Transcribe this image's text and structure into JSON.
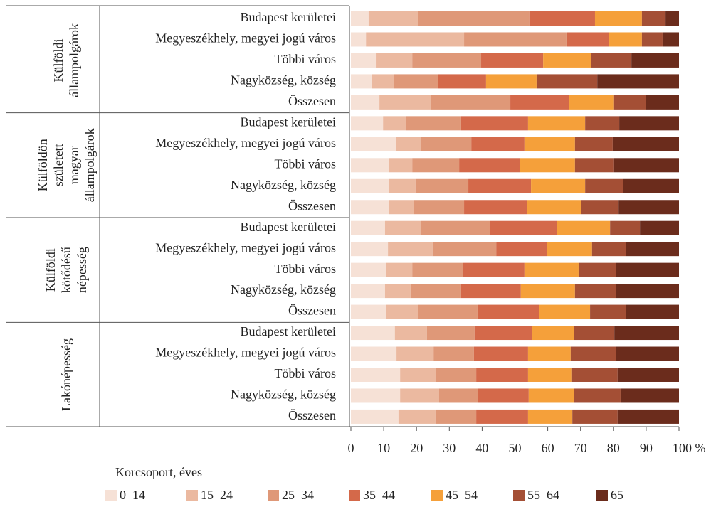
{
  "chart_data": {
    "type": "stacked-barh",
    "groups": [
      {
        "label": [
          "Külföldi",
          "állampolgárok"
        ],
        "categories": [
          "Budapest kerületei",
          "Megyeszékhely, megyei jogú város",
          "Többi város",
          "Nagyközség, község",
          "Összesen"
        ]
      },
      {
        "label": [
          "Külföldön",
          "született",
          "magyar",
          "állampolgárok"
        ],
        "categories": [
          "Budapest kerületei",
          "Megyeszékhely, megyei jogú város",
          "Többi város",
          "Nagyközség, község",
          "Összesen"
        ]
      },
      {
        "label": [
          "Külföldi",
          "kötődésű",
          "népesség"
        ],
        "categories": [
          "Budapest kerületei",
          "Megyeszékhely, megyei jogú város",
          "Többi város",
          "Nagyközség, község",
          "Összesen"
        ]
      },
      {
        "label": [
          "Lakónépesség"
        ],
        "categories": [
          "Budapest kerületei",
          "Megyeszékhely, megyei jogú város",
          "Többi város",
          "Nagyközség, község",
          "Összesen"
        ]
      }
    ],
    "series": [
      {
        "name": "0–14",
        "color": "#f6e1d6",
        "values": [
          5.4,
          4.6,
          7.6,
          6.3,
          8.7,
          9.8,
          13.7,
          11.5,
          11.7,
          11.5,
          10.4,
          11.3,
          10.8,
          10.4,
          10.8,
          13.4,
          13.9,
          15.0,
          15.0,
          14.5
        ]
      },
      {
        "name": "15–24",
        "color": "#ebb9a0",
        "values": [
          15.2,
          29.9,
          11.1,
          6.9,
          15.6,
          7.1,
          7.6,
          7.2,
          8.0,
          7.6,
          10.9,
          13.6,
          7.9,
          7.8,
          9.8,
          9.8,
          11.3,
          11.0,
          11.9,
          11.3
        ]
      },
      {
        "name": "25–34",
        "color": "#df9878",
        "values": [
          33.8,
          31.2,
          21.0,
          13.3,
          24.3,
          16.7,
          15.4,
          14.3,
          16.1,
          15.4,
          21.0,
          19.4,
          15.4,
          15.4,
          18.0,
          14.5,
          12.3,
          12.2,
          11.9,
          12.4
        ]
      },
      {
        "name": "35–44",
        "color": "#d4694a",
        "values": [
          20.0,
          13.0,
          18.9,
          14.7,
          17.8,
          20.4,
          16.2,
          18.6,
          19.1,
          19.1,
          20.4,
          15.4,
          18.8,
          18.2,
          18.7,
          17.6,
          16.5,
          15.8,
          15.4,
          15.8
        ]
      },
      {
        "name": "45–54",
        "color": "#f5a03a",
        "values": [
          14.3,
          10.0,
          14.5,
          15.4,
          13.6,
          17.4,
          15.4,
          16.7,
          16.5,
          16.5,
          16.3,
          13.8,
          16.5,
          16.5,
          15.6,
          12.6,
          13.0,
          13.2,
          13.9,
          13.5
        ]
      },
      {
        "name": "55–64",
        "color": "#a44f35",
        "values": [
          7.2,
          6.3,
          12.4,
          18.5,
          10.0,
          10.4,
          11.5,
          11.7,
          11.5,
          11.5,
          9.1,
          10.4,
          11.5,
          12.6,
          11.0,
          12.4,
          13.9,
          14.1,
          14.1,
          13.8
        ]
      },
      {
        "name": "65–",
        "color": "#6b2c1c",
        "values": [
          4.1,
          5.0,
          14.5,
          24.9,
          10.0,
          18.2,
          20.2,
          20.0,
          17.1,
          18.4,
          11.9,
          16.1,
          19.1,
          19.1,
          16.1,
          19.7,
          19.1,
          18.7,
          17.8,
          18.7
        ]
      }
    ],
    "xlim": [
      0,
      100
    ],
    "xticks": [
      0,
      10,
      20,
      30,
      40,
      50,
      60,
      70,
      80,
      90,
      {
        "value": 100,
        "label": "100 %"
      }
    ],
    "legend_title": "Korcsoport, éves"
  }
}
